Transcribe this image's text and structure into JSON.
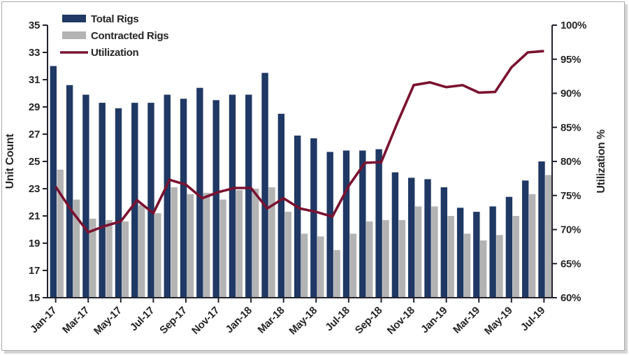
{
  "page": {
    "background": "#ffffff",
    "frame_border_color": "#a9a9a9",
    "frame_shadow_color": "#d4d4d4"
  },
  "chart_data": {
    "type": "bar",
    "subtype": "grouped-bars-with-line-combo",
    "title": "",
    "categories": [
      "Jan-17",
      "Feb-17",
      "Mar-17",
      "Apr-17",
      "May-17",
      "Jun-17",
      "Jul-17",
      "Aug-17",
      "Sep-17",
      "Oct-17",
      "Nov-17",
      "Dec-17",
      "Jan-18",
      "Feb-18",
      "Mar-18",
      "Apr-18",
      "May-18",
      "Jun-18",
      "Jul-18",
      "Aug-18",
      "Sep-18",
      "Oct-18",
      "Nov-18",
      "Dec-18",
      "Jan-19",
      "Feb-19",
      "Mar-19",
      "Apr-19",
      "May-19",
      "Jun-19",
      "Jul-19"
    ],
    "x_axis": {
      "labeled_category_indices": [
        0,
        2,
        4,
        6,
        8,
        10,
        12,
        14,
        16,
        18,
        20,
        22,
        24,
        26,
        28,
        30
      ],
      "shown_labels": [
        "Jan-17",
        "Mar-17",
        "May-17",
        "Jul-17",
        "Sep-17",
        "Nov-17",
        "Jan-18",
        "Mar-18",
        "May-18",
        "Jul-18",
        "Sep-18",
        "Nov-18",
        "Jan-19",
        "Mar-19",
        "May-19",
        "Jul-19"
      ],
      "label_rotation_deg": -45
    },
    "left_axis": {
      "title": "Unit Count",
      "min": 15,
      "max": 35,
      "tick_step": 2,
      "tick_labels": [
        "15",
        "17",
        "19",
        "21",
        "23",
        "25",
        "27",
        "29",
        "31",
        "33",
        "35"
      ]
    },
    "right_axis": {
      "title": "Utilization %",
      "min": 60,
      "max": 100,
      "tick_step": 5,
      "tick_labels": [
        "60%",
        "65%",
        "70%",
        "75%",
        "80%",
        "85%",
        "90%",
        "95%",
        "100%"
      ]
    },
    "legend": {
      "position": "top-left-inside",
      "items": [
        {
          "label": "Total Rigs",
          "swatch": "bar",
          "color": "#1F3864"
        },
        {
          "label": "Contracted Rigs",
          "swatch": "bar",
          "color": "#B3B3B3"
        },
        {
          "label": "Utilization",
          "swatch": "line",
          "color": "#7A1230"
        }
      ]
    },
    "series": [
      {
        "name": "Total Rigs",
        "type": "bar",
        "axis": "left",
        "color": "#1F3864",
        "values": [
          32.0,
          30.6,
          29.9,
          29.3,
          28.9,
          29.3,
          29.3,
          29.9,
          29.6,
          30.4,
          29.5,
          29.9,
          29.9,
          31.5,
          28.5,
          26.9,
          26.7,
          25.7,
          25.8,
          25.8,
          25.9,
          24.2,
          23.8,
          23.7,
          23.1,
          21.6,
          21.3,
          21.7,
          22.4,
          23.6,
          25.0
        ]
      },
      {
        "name": "Contracted Rigs",
        "type": "bar",
        "axis": "left",
        "color": "#B3B3B3",
        "values": [
          24.4,
          22.2,
          20.8,
          20.7,
          20.6,
          21.8,
          21.2,
          23.1,
          22.6,
          22.7,
          22.2,
          22.9,
          23.0,
          23.1,
          21.3,
          19.7,
          19.5,
          18.5,
          19.7,
          20.6,
          20.7,
          20.7,
          21.7,
          21.7,
          21.0,
          19.7,
          19.2,
          19.6,
          21.0,
          22.6,
          24.0
        ]
      },
      {
        "name": "Utilization",
        "type": "line",
        "axis": "right",
        "color": "#7A1230",
        "values": [
          76.3,
          72.7,
          69.6,
          70.5,
          71.2,
          74.3,
          72.4,
          77.3,
          76.6,
          74.6,
          75.5,
          76.1,
          76.1,
          73.1,
          74.6,
          73.1,
          72.6,
          71.9,
          76.4,
          79.8,
          79.9,
          85.7,
          91.2,
          91.6,
          90.9,
          91.2,
          90.1,
          90.2,
          93.8,
          96.0,
          96.2
        ]
      }
    ],
    "grid": "off",
    "axis_line_color": "#23232e"
  }
}
